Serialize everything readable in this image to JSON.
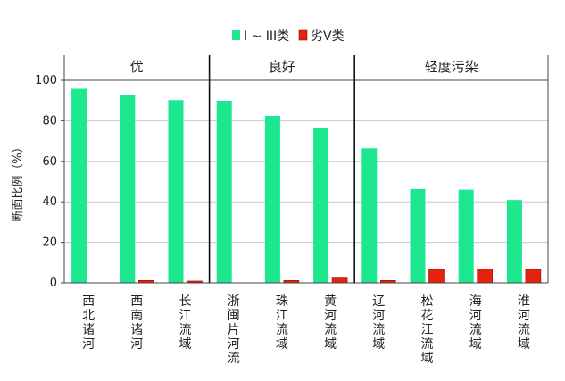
{
  "chart_data": {
    "type": "bar",
    "ylabel": "断面比例（%）",
    "ylim": [
      0,
      100
    ],
    "yticks": [
      0,
      20,
      40,
      60,
      80,
      100
    ],
    "grid": true,
    "legend_position": "top-center",
    "categories": [
      "西北诸河",
      "西南诸河",
      "长江流域",
      "浙闽片河流",
      "珠江流域",
      "黄河流域",
      "辽河流域",
      "松花江流域",
      "海河流域",
      "淮河流域"
    ],
    "series": [
      {
        "name": "I ~ III类",
        "color": "#1ee88f",
        "values": [
          95.8,
          92.8,
          90.2,
          89.9,
          82.4,
          76.5,
          66.4,
          46.3,
          46.0,
          40.9
        ]
      },
      {
        "name": "劣V类",
        "color": "#e8200f",
        "values": [
          0,
          1.2,
          0.9,
          0,
          1.2,
          2.4,
          1.2,
          6.6,
          6.8,
          6.6
        ]
      }
    ],
    "groups": [
      {
        "label": "优",
        "start": 0,
        "end": 2
      },
      {
        "label": "良好",
        "start": 3,
        "end": 5
      },
      {
        "label": "轻度污染",
        "start": 6,
        "end": 9
      }
    ]
  }
}
